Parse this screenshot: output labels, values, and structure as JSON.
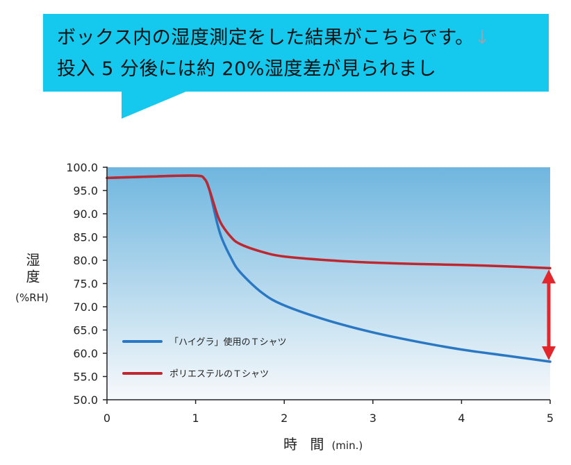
{
  "callout": {
    "line1": "ボックス内の湿度測定をした結果がこちらです。",
    "line1_mark": "↓",
    "line2": "投入 5 分後には約 20%湿度差が見られまし"
  },
  "colors": {
    "callout_bg": "#14c8ee",
    "plot_top": "#6fb6df",
    "plot_bottom": "#f7f9fb",
    "series_haigura": "#2a78c4",
    "series_polyester": "#c0262e",
    "arrow": "#e2262c"
  },
  "chart_data": {
    "type": "line",
    "ylabel_main": "湿度",
    "ylabel_unit": "(%RH)",
    "xlabel_main": "時 間",
    "xlabel_unit": "(min.)",
    "xlim": [
      0,
      5
    ],
    "ylim": [
      50,
      100
    ],
    "x_ticks": [
      "0",
      "1",
      "2",
      "3",
      "4",
      "5"
    ],
    "y_ticks": [
      "100.0",
      "95.0",
      "90.0",
      "85.0",
      "80.0",
      "75.0",
      "70.0",
      "65.0",
      "60.0",
      "55.0",
      "50.0"
    ],
    "grid": false,
    "legend_position": "bottom-left",
    "series": [
      {
        "name": "「ハイグラ」使用のＴシャツ",
        "color": "#2a78c4",
        "points": [
          [
            0,
            97.7
          ],
          [
            0.5,
            98.0
          ],
          [
            1.0,
            98.2
          ],
          [
            1.1,
            97.5
          ],
          [
            1.15,
            95.5
          ],
          [
            1.2,
            91.5
          ],
          [
            1.25,
            87.5
          ],
          [
            1.3,
            84.5
          ],
          [
            1.4,
            80.5
          ],
          [
            1.5,
            77.5
          ],
          [
            1.75,
            73.0
          ],
          [
            2.0,
            70.3
          ],
          [
            2.5,
            67.0
          ],
          [
            3.0,
            64.5
          ],
          [
            3.5,
            62.5
          ],
          [
            4.0,
            60.8
          ],
          [
            4.5,
            59.5
          ],
          [
            5.0,
            58.2
          ]
        ]
      },
      {
        "name": "ポリエステルのＴシャツ",
        "color": "#c0262e",
        "points": [
          [
            0,
            97.7
          ],
          [
            0.5,
            98.0
          ],
          [
            1.0,
            98.2
          ],
          [
            1.1,
            97.5
          ],
          [
            1.15,
            95.5
          ],
          [
            1.2,
            92.5
          ],
          [
            1.25,
            89.5
          ],
          [
            1.3,
            87.5
          ],
          [
            1.4,
            85.0
          ],
          [
            1.5,
            83.5
          ],
          [
            1.75,
            81.8
          ],
          [
            2.0,
            80.8
          ],
          [
            2.5,
            80.0
          ],
          [
            3.0,
            79.5
          ],
          [
            3.5,
            79.2
          ],
          [
            4.0,
            79.0
          ],
          [
            4.5,
            78.7
          ],
          [
            5.0,
            78.3
          ]
        ]
      }
    ],
    "annotation": {
      "type": "double-arrow",
      "x": 5.0,
      "y_from": 58.2,
      "y_to": 78.3
    }
  }
}
